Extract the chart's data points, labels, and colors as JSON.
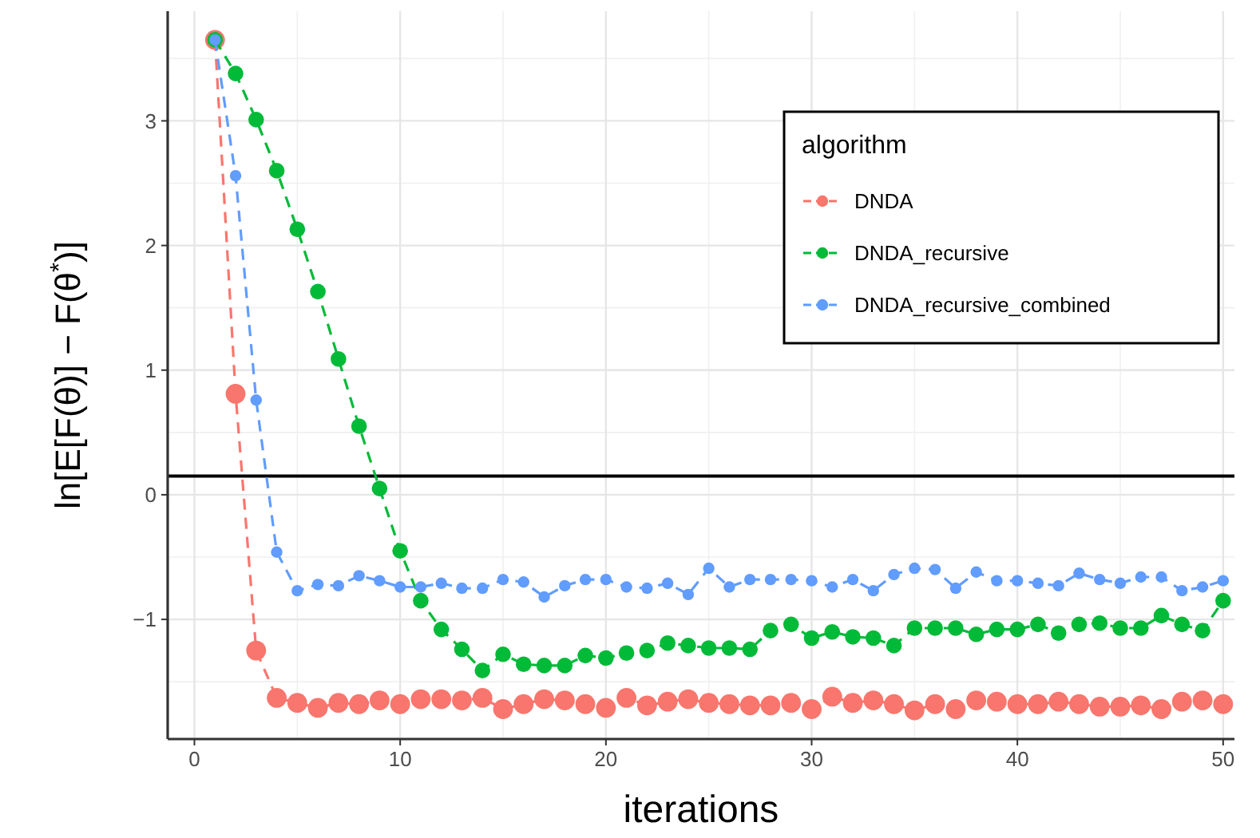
{
  "chart_data": {
    "type": "line",
    "xlabel": "iterations",
    "ylabel": "ln[E[F(θ)] − F(θ$^{*}$)]",
    "legend_title": "algorithm",
    "legend": "top right",
    "grid": true,
    "marker": "circle",
    "line_style": "dashed",
    "x": [
      1,
      2,
      3,
      4,
      5,
      6,
      7,
      8,
      9,
      10,
      11,
      12,
      13,
      14,
      15,
      16,
      17,
      18,
      19,
      20,
      21,
      22,
      23,
      24,
      25,
      26,
      27,
      28,
      29,
      30,
      31,
      32,
      33,
      34,
      35,
      36,
      37,
      38,
      39,
      40,
      41,
      42,
      43,
      44,
      45,
      46,
      47,
      48,
      49,
      50
    ],
    "xlim": [
      -1.3,
      50.55
    ],
    "xticks": [
      0,
      10,
      20,
      30,
      40,
      50
    ],
    "ylim": [
      -1.96,
      3.88
    ],
    "yticks": [
      -1,
      0,
      1,
      2,
      3
    ],
    "ref_lines": [
      {
        "axis": "y",
        "value": 0.15,
        "color": "#000000"
      }
    ],
    "series": [
      {
        "name": "DNDA",
        "color": "#F8766D",
        "values": [
          3.65,
          0.81,
          -1.25,
          -1.63,
          -1.67,
          -1.71,
          -1.67,
          -1.68,
          -1.65,
          -1.68,
          -1.64,
          -1.64,
          -1.65,
          -1.63,
          -1.72,
          -1.68,
          -1.64,
          -1.65,
          -1.68,
          -1.71,
          -1.63,
          -1.69,
          -1.66,
          -1.64,
          -1.67,
          -1.68,
          -1.69,
          -1.69,
          -1.67,
          -1.72,
          -1.62,
          -1.67,
          -1.65,
          -1.68,
          -1.73,
          -1.68,
          -1.72,
          -1.65,
          -1.66,
          -1.68,
          -1.68,
          -1.66,
          -1.68,
          -1.7,
          -1.7,
          -1.69,
          -1.72,
          -1.66,
          -1.65,
          -1.68
        ]
      },
      {
        "name": "DNDA_recursive",
        "color": "#00BA38",
        "values": [
          3.65,
          3.38,
          3.01,
          2.6,
          2.13,
          1.63,
          1.09,
          0.55,
          0.05,
          -0.45,
          -0.85,
          -1.08,
          -1.24,
          -1.41,
          -1.28,
          -1.36,
          -1.37,
          -1.37,
          -1.29,
          -1.31,
          -1.27,
          -1.25,
          -1.19,
          -1.21,
          -1.23,
          -1.23,
          -1.24,
          -1.09,
          -1.04,
          -1.15,
          -1.1,
          -1.14,
          -1.15,
          -1.21,
          -1.07,
          -1.07,
          -1.07,
          -1.12,
          -1.08,
          -1.08,
          -1.04,
          -1.11,
          -1.04,
          -1.03,
          -1.07,
          -1.07,
          -0.97,
          -1.04,
          -1.09,
          -0.85
        ]
      },
      {
        "name": "DNDA_recursive_combined",
        "color": "#619CFF",
        "values": [
          3.65,
          2.56,
          0.76,
          -0.46,
          -0.77,
          -0.72,
          -0.73,
          -0.65,
          -0.69,
          -0.74,
          -0.74,
          -0.71,
          -0.75,
          -0.75,
          -0.68,
          -0.7,
          -0.82,
          -0.73,
          -0.68,
          -0.68,
          -0.74,
          -0.75,
          -0.71,
          -0.8,
          -0.59,
          -0.74,
          -0.68,
          -0.68,
          -0.68,
          -0.69,
          -0.74,
          -0.68,
          -0.77,
          -0.64,
          -0.59,
          -0.6,
          -0.75,
          -0.62,
          -0.69,
          -0.69,
          -0.71,
          -0.73,
          -0.63,
          -0.68,
          -0.71,
          -0.66,
          -0.66,
          -0.77,
          -0.74,
          -0.69
        ]
      }
    ]
  }
}
